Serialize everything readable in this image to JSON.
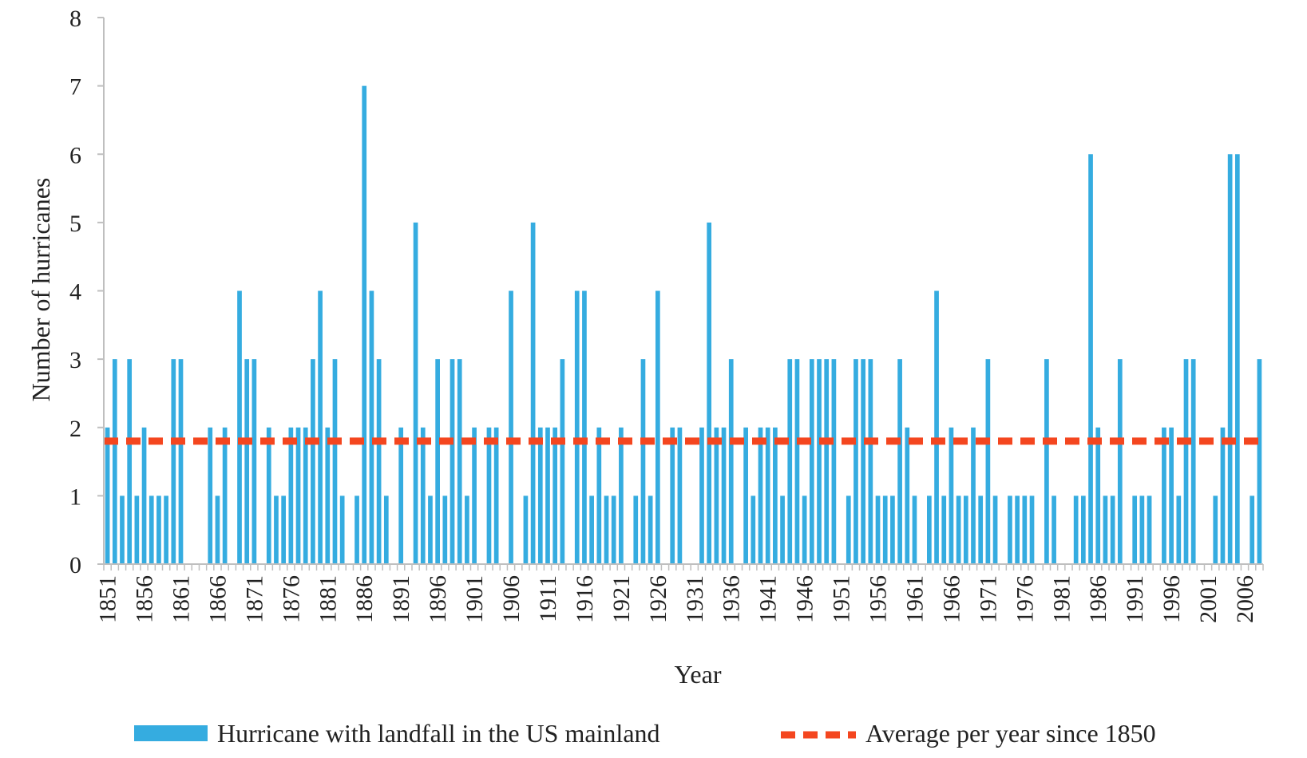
{
  "chart_data": {
    "type": "bar",
    "title": "",
    "xlabel": "Year",
    "ylabel": "Number of hurricanes",
    "ylim": [
      0,
      8
    ],
    "yticks": [
      "0",
      "1",
      "2",
      "3",
      "4",
      "5",
      "6",
      "7",
      "8"
    ],
    "x_tick_every": 5,
    "grid": false,
    "legend_position": "bottom",
    "colors": {
      "bar": "#35ace0",
      "average": "#f4461f",
      "axis": "#bfbfbf"
    },
    "years": [
      1851,
      1852,
      1853,
      1854,
      1855,
      1856,
      1857,
      1858,
      1859,
      1860,
      1861,
      1862,
      1863,
      1864,
      1865,
      1866,
      1867,
      1868,
      1869,
      1870,
      1871,
      1872,
      1873,
      1874,
      1875,
      1876,
      1877,
      1878,
      1879,
      1880,
      1881,
      1882,
      1883,
      1884,
      1885,
      1886,
      1887,
      1888,
      1889,
      1890,
      1891,
      1892,
      1893,
      1894,
      1895,
      1896,
      1897,
      1898,
      1899,
      1900,
      1901,
      1902,
      1903,
      1904,
      1905,
      1906,
      1907,
      1908,
      1909,
      1910,
      1911,
      1912,
      1913,
      1914,
      1915,
      1916,
      1917,
      1918,
      1919,
      1920,
      1921,
      1922,
      1923,
      1924,
      1925,
      1926,
      1927,
      1928,
      1929,
      1930,
      1931,
      1932,
      1933,
      1934,
      1935,
      1936,
      1937,
      1938,
      1939,
      1940,
      1941,
      1942,
      1943,
      1944,
      1945,
      1946,
      1947,
      1948,
      1949,
      1950,
      1951,
      1952,
      1953,
      1954,
      1955,
      1956,
      1957,
      1958,
      1959,
      1960,
      1961,
      1962,
      1963,
      1964,
      1965,
      1966,
      1967,
      1968,
      1969,
      1970,
      1971,
      1972,
      1973,
      1974,
      1975,
      1976,
      1977,
      1978,
      1979,
      1980,
      1981,
      1982,
      1983,
      1984,
      1985,
      1986,
      1987,
      1988,
      1989,
      1990,
      1991,
      1992,
      1993,
      1994,
      1995,
      1996,
      1997,
      1998,
      1999,
      2000,
      2001,
      2002,
      2003,
      2004,
      2005,
      2006,
      2007,
      2008
    ],
    "series": [
      {
        "name": "Hurricane with landfall in the US mainland",
        "type": "bar",
        "values": [
          2,
          3,
          1,
          3,
          1,
          2,
          1,
          1,
          1,
          3,
          3,
          0,
          0,
          0,
          2,
          1,
          2,
          0,
          4,
          3,
          3,
          0,
          2,
          1,
          1,
          2,
          2,
          2,
          3,
          4,
          2,
          3,
          1,
          0,
          1,
          7,
          4,
          3,
          1,
          0,
          2,
          0,
          5,
          2,
          1,
          3,
          1,
          3,
          3,
          1,
          2,
          0,
          2,
          2,
          0,
          4,
          0,
          1,
          5,
          2,
          2,
          2,
          3,
          0,
          4,
          4,
          1,
          2,
          1,
          1,
          2,
          0,
          1,
          3,
          1,
          4,
          0,
          2,
          2,
          0,
          0,
          2,
          5,
          2,
          2,
          3,
          0,
          2,
          1,
          2,
          2,
          2,
          1,
          3,
          3,
          1,
          3,
          3,
          3,
          3,
          0,
          1,
          3,
          3,
          3,
          1,
          1,
          1,
          3,
          2,
          1,
          0,
          1,
          4,
          1,
          2,
          1,
          1,
          2,
          1,
          3,
          1,
          0,
          1,
          1,
          1,
          1,
          0,
          3,
          1,
          0,
          0,
          1,
          1,
          6,
          2,
          1,
          1,
          3,
          0,
          1,
          1,
          1,
          0,
          2,
          2,
          1,
          3,
          3,
          0,
          0,
          1,
          2,
          6,
          6,
          0,
          1,
          3
        ]
      },
      {
        "name": "Average per year since 1850",
        "type": "line",
        "value": 1.8
      }
    ]
  }
}
